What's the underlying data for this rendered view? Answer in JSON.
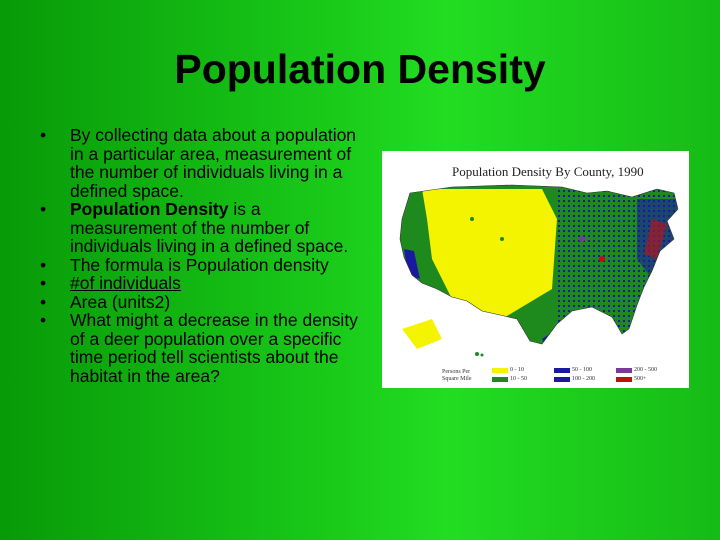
{
  "slide": {
    "title": "Population Density",
    "bullets": {
      "b1": "By collecting data about a population in a particular area, measurement of the number of individuals living in a defined space.",
      "b2_bold": "Population Density",
      "b2_rest": " is a measurement of the number of individuals living in a defined space.",
      "b3": "The formula is Population density",
      "b4": "#of individuals",
      "b5": "Area (units2)",
      "b6": "What might a decrease in the density of a deer population over a specific time period tell scientists about the habitat in the area?"
    }
  },
  "map": {
    "title": "Population Density By County, 1990",
    "legend_header_1": "Persons Per",
    "legend_header_2": "Square Mile",
    "legend": [
      {
        "label": "0 - 10",
        "color": "#f4f400"
      },
      {
        "label": "10 - 50",
        "color": "#1e8a1e"
      },
      {
        "label": "50 - 100",
        "color": "#1a1aa0"
      },
      {
        "label": "100 - 200",
        "color": "#1a1aa0"
      },
      {
        "label": "200 - 500",
        "color": "#7a3a9a"
      },
      {
        "label": "500+",
        "color": "#c01010"
      }
    ]
  }
}
